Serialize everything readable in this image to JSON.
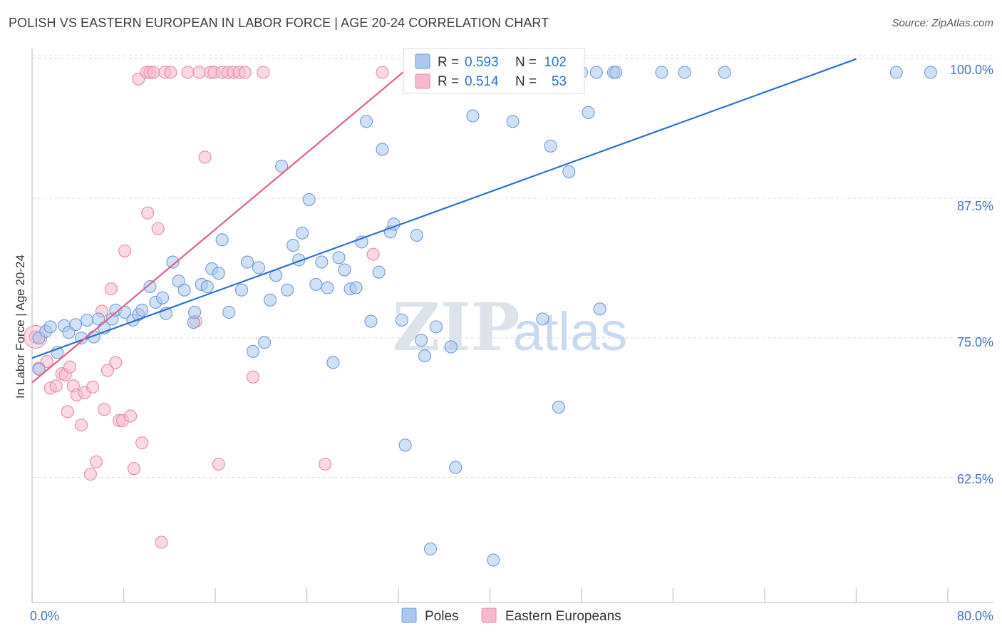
{
  "title": "POLISH VS EASTERN EUROPEAN IN LABOR FORCE | AGE 20-24 CORRELATION CHART",
  "source": "Source: ZipAtlas.com",
  "watermark": {
    "zip": "ZIP",
    "atlas": "atlas"
  },
  "colors": {
    "poles_fill": "#aac8ef",
    "poles_stroke": "#6f9ad8",
    "poles_line": "#2c6fd1",
    "eastern_fill": "#f6b9cc",
    "eastern_stroke": "#e68aa8",
    "eastern_line": "#e0608a",
    "tick_text": "#4472c4",
    "grid": "#dcdcdc"
  },
  "stats": {
    "poles": {
      "r_label": "R =",
      "r_value": "0.593",
      "n_label": "N =",
      "n_value": "102"
    },
    "eastern": {
      "r_label": "R =",
      "r_value": "0.514",
      "n_label": "N =",
      "n_value": "53"
    }
  },
  "chart_data": {
    "type": "scatter",
    "title": "POLISH VS EASTERN EUROPEAN IN LABOR FORCE | AGE 20-24 CORRELATION CHART",
    "xlabel": "",
    "ylabel": "In Labor Force | Age 20-24",
    "xlim": [
      0,
      80
    ],
    "ylim": [
      52.5,
      101.5
    ],
    "x_tick_labels": [
      {
        "value": 0,
        "label": "0.0%"
      },
      {
        "value": 80,
        "label": "80.0%"
      }
    ],
    "y_ticks": [
      {
        "value": 62.5,
        "label": "62.5%"
      },
      {
        "value": 75.0,
        "label": "75.0%"
      },
      {
        "value": 87.5,
        "label": "87.5%"
      },
      {
        "value": 100.0,
        "label": "100.0%"
      }
    ],
    "grid": true,
    "legend_position": "bottom-center",
    "series": [
      {
        "name": "Poles",
        "trend": {
          "x0": 0,
          "y0": 74.4,
          "x1": 72.0,
          "y1": 101.2
        },
        "points": [
          [
            0.6,
            76.2
          ],
          [
            0.6,
            73.4
          ],
          [
            1.2,
            76.8
          ],
          [
            1.6,
            77.2
          ],
          [
            2.2,
            74.9
          ],
          [
            2.8,
            77.3
          ],
          [
            3.2,
            76.7
          ],
          [
            3.8,
            77.4
          ],
          [
            4.3,
            76.2
          ],
          [
            4.8,
            77.8
          ],
          [
            5.4,
            76.3
          ],
          [
            5.8,
            77.9
          ],
          [
            6.3,
            77.1
          ],
          [
            7.0,
            77.9
          ],
          [
            7.3,
            78.7
          ],
          [
            8.1,
            78.5
          ],
          [
            8.8,
            77.8
          ],
          [
            9.3,
            78.3
          ],
          [
            9.6,
            78.7
          ],
          [
            10.3,
            80.8
          ],
          [
            10.8,
            79.4
          ],
          [
            11.4,
            79.8
          ],
          [
            11.7,
            78.4
          ],
          [
            12.3,
            83.0
          ],
          [
            12.8,
            81.3
          ],
          [
            13.3,
            80.5
          ],
          [
            14.1,
            77.6
          ],
          [
            14.2,
            78.5
          ],
          [
            14.8,
            81.0
          ],
          [
            15.3,
            80.8
          ],
          [
            15.7,
            82.4
          ],
          [
            16.3,
            82.0
          ],
          [
            16.6,
            85.0
          ],
          [
            17.2,
            78.5
          ],
          [
            18.3,
            80.5
          ],
          [
            18.8,
            83.0
          ],
          [
            19.3,
            75.0
          ],
          [
            19.8,
            82.5
          ],
          [
            20.3,
            75.8
          ],
          [
            20.8,
            79.6
          ],
          [
            21.3,
            81.8
          ],
          [
            21.8,
            91.6
          ],
          [
            22.3,
            80.5
          ],
          [
            22.8,
            84.5
          ],
          [
            23.3,
            83.2
          ],
          [
            23.6,
            85.6
          ],
          [
            24.2,
            88.6
          ],
          [
            24.8,
            81.0
          ],
          [
            25.3,
            83.0
          ],
          [
            25.8,
            80.7
          ],
          [
            26.3,
            74.0
          ],
          [
            26.8,
            83.4
          ],
          [
            27.3,
            82.3
          ],
          [
            27.8,
            80.6
          ],
          [
            28.3,
            80.7
          ],
          [
            28.8,
            84.8
          ],
          [
            29.2,
            95.6
          ],
          [
            29.6,
            77.7
          ],
          [
            30.3,
            82.1
          ],
          [
            30.6,
            93.1
          ],
          [
            31.3,
            85.7
          ],
          [
            31.6,
            86.4
          ],
          [
            32.3,
            77.8
          ],
          [
            32.6,
            66.6
          ],
          [
            33.6,
            85.4
          ],
          [
            34.0,
            76.0
          ],
          [
            34.3,
            74.6
          ],
          [
            34.8,
            57.3
          ],
          [
            35.3,
            77.2
          ],
          [
            36.2,
            100.0
          ],
          [
            36.6,
            75.4
          ],
          [
            37.0,
            64.6
          ],
          [
            37.6,
            100.0
          ],
          [
            38.2,
            100.0
          ],
          [
            38.5,
            96.1
          ],
          [
            39.0,
            100.0
          ],
          [
            40.0,
            100.0
          ],
          [
            40.3,
            56.3
          ],
          [
            40.6,
            100.0
          ],
          [
            41.3,
            100.0
          ],
          [
            42.0,
            95.6
          ],
          [
            42.6,
            100.0
          ],
          [
            43.3,
            100.0
          ],
          [
            44.0,
            100.0
          ],
          [
            44.6,
            77.9
          ],
          [
            45.3,
            93.4
          ],
          [
            46.0,
            70.0
          ],
          [
            46.3,
            100.0
          ],
          [
            46.9,
            91.1
          ],
          [
            48.0,
            100.0
          ],
          [
            48.6,
            96.4
          ],
          [
            49.3,
            100.0
          ],
          [
            49.6,
            78.8
          ],
          [
            50.8,
            100.0
          ],
          [
            51.0,
            100.0
          ],
          [
            55.0,
            100.0
          ],
          [
            57.0,
            100.0
          ],
          [
            60.5,
            100.0
          ],
          [
            75.5,
            100.0
          ],
          [
            78.5,
            100.0
          ]
        ]
      },
      {
        "name": "Eastern Europeans",
        "trend": {
          "x0": 0,
          "y0": 72.2,
          "x1": 33.8,
          "y1": 101.2
        },
        "points": [
          [
            0.3,
            76.3
          ],
          [
            0.6,
            73.5
          ],
          [
            1.3,
            74.1
          ],
          [
            1.6,
            71.7
          ],
          [
            2.1,
            71.9
          ],
          [
            2.6,
            73.0
          ],
          [
            2.9,
            72.9
          ],
          [
            3.1,
            69.6
          ],
          [
            3.3,
            73.6
          ],
          [
            3.6,
            71.9
          ],
          [
            3.9,
            71.1
          ],
          [
            4.3,
            68.4
          ],
          [
            4.6,
            71.3
          ],
          [
            5.1,
            64.0
          ],
          [
            5.3,
            71.8
          ],
          [
            5.6,
            65.1
          ],
          [
            6.1,
            78.6
          ],
          [
            6.3,
            69.8
          ],
          [
            6.6,
            73.3
          ],
          [
            6.9,
            80.6
          ],
          [
            7.3,
            74.0
          ],
          [
            7.6,
            68.8
          ],
          [
            7.9,
            68.8
          ],
          [
            8.1,
            84.0
          ],
          [
            8.6,
            69.2
          ],
          [
            8.9,
            64.5
          ],
          [
            9.3,
            99.4
          ],
          [
            9.6,
            66.8
          ],
          [
            10.0,
            100.0
          ],
          [
            10.1,
            87.4
          ],
          [
            10.3,
            100.0
          ],
          [
            10.6,
            100.0
          ],
          [
            11.0,
            86.0
          ],
          [
            11.3,
            57.9
          ],
          [
            11.6,
            100.0
          ],
          [
            12.1,
            100.0
          ],
          [
            13.6,
            100.0
          ],
          [
            14.3,
            77.7
          ],
          [
            14.6,
            100.0
          ],
          [
            15.1,
            92.4
          ],
          [
            15.6,
            100.0
          ],
          [
            15.9,
            100.0
          ],
          [
            16.3,
            64.9
          ],
          [
            16.6,
            100.0
          ],
          [
            17.1,
            100.0
          ],
          [
            17.6,
            100.0
          ],
          [
            18.1,
            100.0
          ],
          [
            18.6,
            100.0
          ],
          [
            19.3,
            72.7
          ],
          [
            20.2,
            100.0
          ],
          [
            25.6,
            64.9
          ],
          [
            29.8,
            83.7
          ],
          [
            30.6,
            100.0
          ]
        ]
      }
    ]
  },
  "legend": {
    "poles": "Poles",
    "eastern": "Eastern Europeans"
  }
}
